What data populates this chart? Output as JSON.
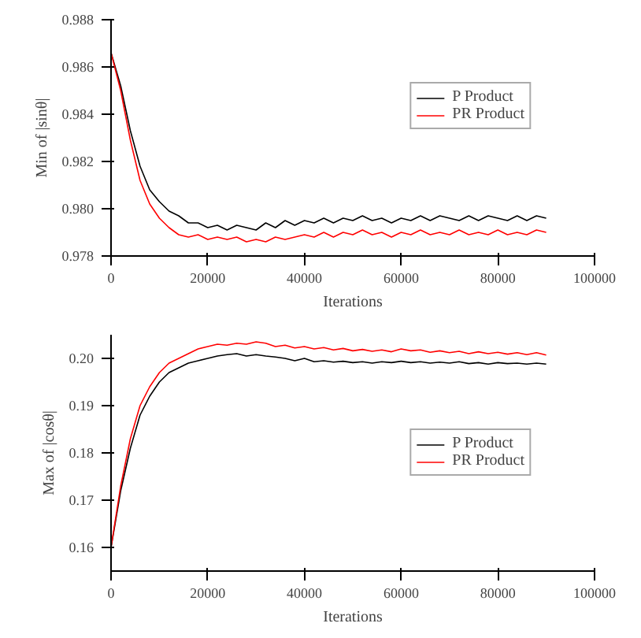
{
  "chart_data": [
    {
      "type": "line",
      "xlabel": "Iterations",
      "ylabel": "Min of |sinθ|",
      "xlim": [
        0,
        100000
      ],
      "xticks": [
        0,
        20000,
        40000,
        60000,
        80000,
        100000
      ],
      "ylim": [
        0.978,
        0.988
      ],
      "yticks": [
        0.978,
        {
          "value": 0.98,
          "label": "0.980"
        },
        0.982,
        0.984,
        0.986,
        0.988
      ],
      "grid": false,
      "legend": "top right",
      "x": [
        0,
        2000,
        4000,
        6000,
        8000,
        10000,
        12000,
        14000,
        16000,
        18000,
        20000,
        22000,
        24000,
        26000,
        28000,
        30000,
        32000,
        34000,
        36000,
        38000,
        40000,
        42000,
        44000,
        46000,
        48000,
        50000,
        52000,
        54000,
        56000,
        58000,
        60000,
        62000,
        64000,
        66000,
        68000,
        70000,
        72000,
        74000,
        76000,
        78000,
        80000,
        82000,
        84000,
        86000,
        88000,
        90000
      ],
      "series": [
        {
          "name": "P Product",
          "color": "#000000",
          "values": [
            0.9866,
            0.9852,
            0.9833,
            0.9818,
            0.9808,
            0.9803,
            0.9799,
            0.9797,
            0.9794,
            0.9794,
            0.9792,
            0.9793,
            0.9791,
            0.9793,
            0.9792,
            0.9791,
            0.9794,
            0.9792,
            0.9795,
            0.9793,
            0.9795,
            0.9794,
            0.9796,
            0.9794,
            0.9796,
            0.9795,
            0.9797,
            0.9795,
            0.9796,
            0.9794,
            0.9796,
            0.9795,
            0.9797,
            0.9795,
            0.9797,
            0.9796,
            0.9795,
            0.9797,
            0.9795,
            0.9797,
            0.9796,
            0.9795,
            0.9797,
            0.9795,
            0.9797,
            0.9796
          ]
        },
        {
          "name": "PR Product",
          "color": "#ff0000",
          "values": [
            0.9866,
            0.985,
            0.9829,
            0.9812,
            0.9802,
            0.9796,
            0.9792,
            0.9789,
            0.9788,
            0.9789,
            0.9787,
            0.9788,
            0.9787,
            0.9788,
            0.9786,
            0.9787,
            0.9786,
            0.9788,
            0.9787,
            0.9788,
            0.9789,
            0.9788,
            0.979,
            0.9788,
            0.979,
            0.9789,
            0.9791,
            0.9789,
            0.979,
            0.9788,
            0.979,
            0.9789,
            0.9791,
            0.9789,
            0.979,
            0.9789,
            0.9791,
            0.9789,
            0.979,
            0.9789,
            0.9791,
            0.9789,
            0.979,
            0.9789,
            0.9791,
            0.979
          ]
        }
      ]
    },
    {
      "type": "line",
      "xlabel": "Iterations",
      "ylabel": "Max of |cosθ|",
      "xlim": [
        0,
        100000
      ],
      "xticks": [
        0,
        20000,
        40000,
        60000,
        80000,
        100000
      ],
      "ylim": [
        0.155,
        0.205
      ],
      "yticks": [
        0.16,
        0.17,
        0.18,
        0.19,
        {
          "value": 0.2,
          "label": "0.20"
        }
      ],
      "grid": false,
      "legend": "right",
      "x": [
        0,
        2000,
        4000,
        6000,
        8000,
        10000,
        12000,
        14000,
        16000,
        18000,
        20000,
        22000,
        24000,
        26000,
        28000,
        30000,
        32000,
        34000,
        36000,
        38000,
        40000,
        42000,
        44000,
        46000,
        48000,
        50000,
        52000,
        54000,
        56000,
        58000,
        60000,
        62000,
        64000,
        66000,
        68000,
        70000,
        72000,
        74000,
        76000,
        78000,
        80000,
        82000,
        84000,
        86000,
        88000,
        90000
      ],
      "series": [
        {
          "name": "P Product",
          "color": "#000000",
          "values": [
            0.16,
            0.172,
            0.181,
            0.188,
            0.192,
            0.195,
            0.197,
            0.198,
            0.199,
            0.1995,
            0.2,
            0.2005,
            0.2008,
            0.201,
            0.2005,
            0.2008,
            0.2005,
            0.2003,
            0.2,
            0.1995,
            0.2,
            0.1993,
            0.1995,
            0.1992,
            0.1994,
            0.1991,
            0.1993,
            0.199,
            0.1993,
            0.1991,
            0.1994,
            0.1991,
            0.1993,
            0.199,
            0.1992,
            0.199,
            0.1993,
            0.1989,
            0.1991,
            0.1988,
            0.1991,
            0.1989,
            0.199,
            0.1988,
            0.199,
            0.1988
          ]
        },
        {
          "name": "PR Product",
          "color": "#ff0000",
          "values": [
            0.16,
            0.173,
            0.183,
            0.19,
            0.194,
            0.197,
            0.199,
            0.2,
            0.201,
            0.202,
            0.2025,
            0.203,
            0.2028,
            0.2032,
            0.203,
            0.2035,
            0.2032,
            0.2025,
            0.2028,
            0.2022,
            0.2025,
            0.202,
            0.2023,
            0.2018,
            0.2021,
            0.2016,
            0.2019,
            0.2015,
            0.2018,
            0.2014,
            0.202,
            0.2016,
            0.2018,
            0.2013,
            0.2016,
            0.2012,
            0.2015,
            0.201,
            0.2014,
            0.201,
            0.2013,
            0.2009,
            0.2012,
            0.2008,
            0.2012,
            0.2007
          ]
        }
      ]
    }
  ]
}
